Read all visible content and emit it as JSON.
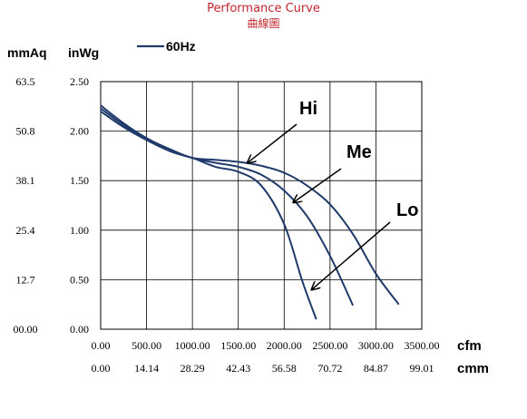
{
  "title": "Performance Curve",
  "subtitle": "曲線圖",
  "chart_data": {
    "type": "line",
    "y_units": [
      "mmAq",
      "inWg"
    ],
    "x_units": [
      "cfm",
      "cmm"
    ],
    "legend": "60Hz",
    "legend_color": "#1f3a6b",
    "grid": true,
    "xlim": [
      0,
      3500
    ],
    "ylim": [
      0,
      2.5
    ],
    "x_ticks_cfm": [
      "0.00",
      "500.00",
      "1000.00",
      "1500.00",
      "2000.00",
      "2500.00",
      "3000.00",
      "3500.00"
    ],
    "x_ticks_cmm": [
      "0.00",
      "14.14",
      "28.29",
      "42.43",
      "56.58",
      "70.72",
      "84.87",
      "99.01"
    ],
    "y_ticks_inwg": [
      "0.00",
      "0.50",
      "1.00",
      "1.50",
      "2.00",
      "2.50"
    ],
    "y_ticks_mmaq": [
      "00.00",
      "12.7",
      "25.4",
      "38.1",
      "50.8",
      "63.5"
    ],
    "series": [
      {
        "name": "Hi",
        "x": [
          0,
          250,
          500,
          750,
          1000,
          1250,
          1500,
          1750,
          2000,
          2250,
          2500,
          2750,
          3000,
          3250
        ],
        "y": [
          2.26,
          2.08,
          1.93,
          1.82,
          1.73,
          1.71,
          1.69,
          1.65,
          1.58,
          1.45,
          1.26,
          0.96,
          0.56,
          0.25
        ]
      },
      {
        "name": "Me",
        "x": [
          0,
          250,
          500,
          750,
          1000,
          1250,
          1500,
          1750,
          2000,
          2250,
          2500,
          2750
        ],
        "y": [
          2.23,
          2.06,
          1.92,
          1.8,
          1.73,
          1.68,
          1.64,
          1.56,
          1.4,
          1.14,
          0.74,
          0.24
        ]
      },
      {
        "name": "Lo",
        "x": [
          0,
          250,
          500,
          750,
          1000,
          1250,
          1500,
          1750,
          2000,
          2200,
          2350
        ],
        "y": [
          2.2,
          2.04,
          1.91,
          1.8,
          1.73,
          1.64,
          1.59,
          1.45,
          1.06,
          0.48,
          0.1
        ]
      }
    ],
    "annotations": [
      {
        "text": "Hi",
        "points_to": [
          1600,
          1.68
        ]
      },
      {
        "text": "Me",
        "points_to": [
          2100,
          1.28
        ]
      },
      {
        "text": "Lo",
        "points_to": [
          2300,
          0.4
        ]
      }
    ]
  }
}
